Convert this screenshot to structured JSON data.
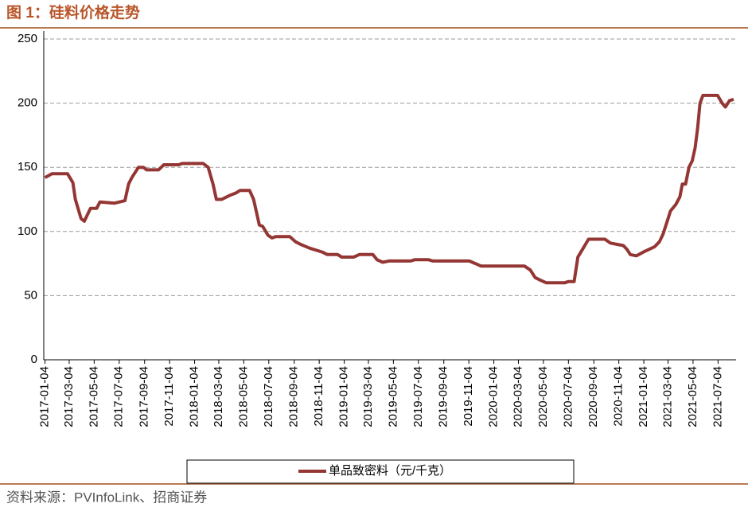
{
  "chart_data": {
    "type": "line",
    "title": "图 1：硅料价格走势",
    "source": "资料来源：PVInfoLink、招商证券",
    "x": [
      "2017-01-04",
      "2017-01-21",
      "2017-02-28",
      "2017-03-13",
      "2017-03-19",
      "2017-04-02",
      "2017-04-10",
      "2017-04-25",
      "2017-05-10",
      "2017-05-18",
      "2017-06-22",
      "2017-07-18",
      "2017-07-27",
      "2017-08-04",
      "2017-08-20",
      "2017-09-01",
      "2017-09-09",
      "2017-10-08",
      "2017-10-21",
      "2017-11-26",
      "2017-12-05",
      "2018-01-25",
      "2018-02-06",
      "2018-02-18",
      "2018-02-26",
      "2018-03-11",
      "2018-03-30",
      "2018-04-15",
      "2018-04-25",
      "2018-05-18",
      "2018-05-28",
      "2018-06-11",
      "2018-06-19",
      "2018-07-02",
      "2018-07-12",
      "2018-07-21",
      "2018-08-24",
      "2018-09-07",
      "2018-09-19",
      "2018-10-12",
      "2018-11-11",
      "2018-11-24",
      "2018-12-19",
      "2018-12-29",
      "2019-01-27",
      "2019-02-10",
      "2019-03-15",
      "2019-03-25",
      "2019-04-08",
      "2019-04-23",
      "2019-06-15",
      "2019-06-25",
      "2019-07-29",
      "2019-08-08",
      "2019-11-05",
      "2019-11-20",
      "2019-12-04",
      "2020-03-19",
      "2020-04-02",
      "2020-04-14",
      "2020-04-27",
      "2020-05-11",
      "2020-06-25",
      "2020-07-04",
      "2020-07-18",
      "2020-07-27",
      "2020-08-09",
      "2020-08-22",
      "2020-10-01",
      "2020-10-14",
      "2020-11-15",
      "2020-11-24",
      "2020-12-02",
      "2020-12-17",
      "2021-01-03",
      "2021-01-30",
      "2021-02-11",
      "2021-02-20",
      "2021-03-02",
      "2021-03-10",
      "2021-03-23",
      "2021-04-02",
      "2021-04-08",
      "2021-04-16",
      "2021-04-24",
      "2021-05-02",
      "2021-05-09",
      "2021-05-15",
      "2021-05-21",
      "2021-05-28",
      "2021-07-03",
      "2021-07-14",
      "2021-07-22",
      "2021-08-01",
      "2021-08-11"
    ],
    "series": [
      {
        "name": "单品致密料（元/千克）",
        "color": "#943634",
        "values": [
          142,
          145,
          145,
          138,
          125,
          110,
          108,
          118,
          118,
          123,
          122,
          124,
          137,
          142,
          150,
          150,
          148,
          148,
          152,
          152,
          153,
          153,
          150,
          137,
          125,
          125,
          128,
          130,
          132,
          132,
          125,
          105,
          104,
          97,
          95,
          96,
          96,
          92,
          90,
          87,
          84,
          82,
          82,
          80,
          80,
          82,
          82,
          78,
          76,
          77,
          77,
          78,
          78,
          77,
          77,
          75,
          73,
          73,
          70,
          64,
          62,
          60,
          60,
          61,
          61,
          80,
          87,
          94,
          94,
          91,
          89,
          86,
          82,
          81,
          84,
          88,
          92,
          98,
          108,
          116,
          121,
          127,
          137,
          137,
          150,
          155,
          165,
          180,
          200,
          206,
          206,
          200,
          197,
          202,
          203
        ]
      }
    ],
    "xlim": [
      "2017-01-01",
      "2021-08-17"
    ],
    "xticks": [
      "2017-01-04",
      "2017-03-04",
      "2017-05-04",
      "2017-07-04",
      "2017-09-04",
      "2017-11-04",
      "2018-01-04",
      "2018-03-04",
      "2018-05-04",
      "2018-07-04",
      "2018-09-04",
      "2018-11-04",
      "2019-01-04",
      "2019-03-04",
      "2019-05-04",
      "2019-07-04",
      "2019-09-04",
      "2019-11-04",
      "2020-01-04",
      "2020-03-04",
      "2020-05-04",
      "2020-07-04",
      "2020-09-04",
      "2020-11-04",
      "2021-01-04",
      "2021-03-04",
      "2021-05-04",
      "2021-07-04"
    ],
    "ylim": [
      0,
      250
    ],
    "yticks": [
      0,
      50,
      100,
      150,
      200,
      250
    ],
    "grid": true
  }
}
